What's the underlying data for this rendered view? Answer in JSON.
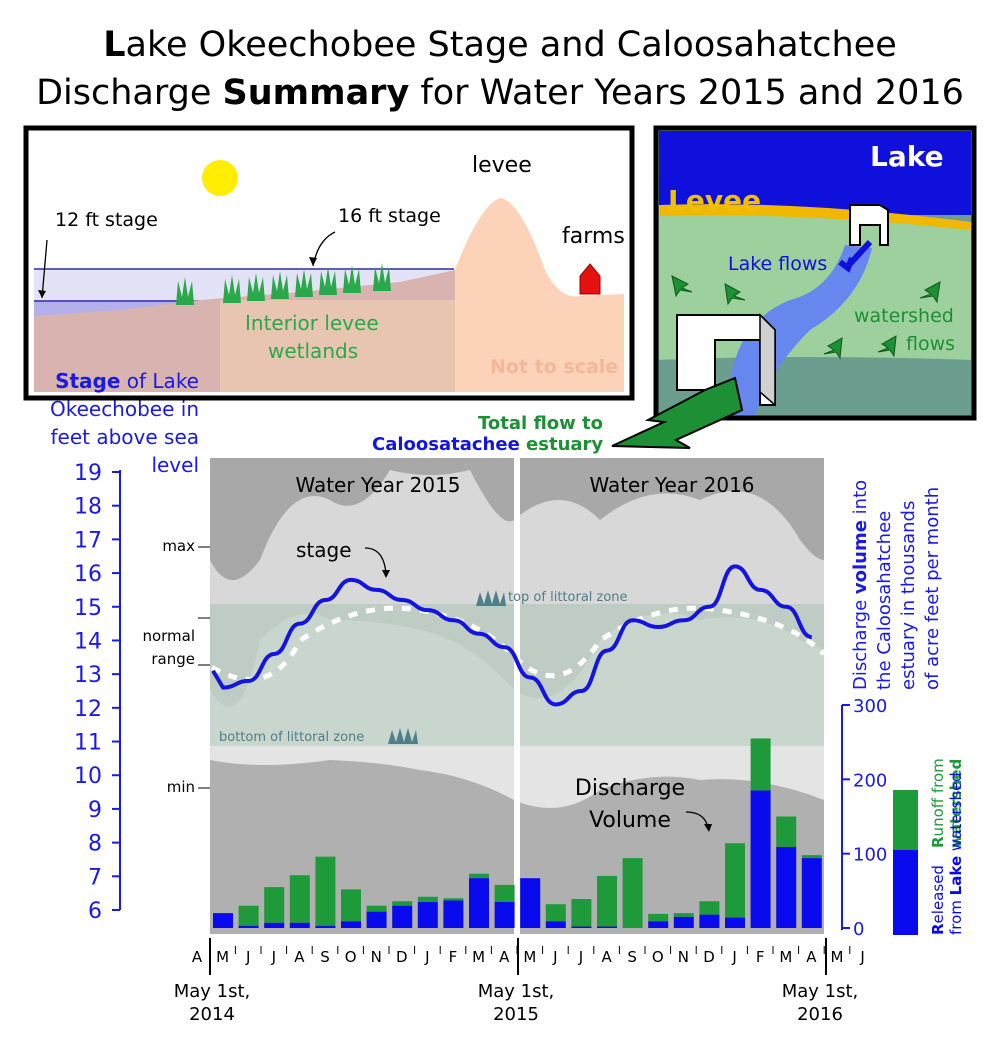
{
  "title": {
    "line1_lead": "L",
    "line1_rest": "ake Okeechobee Stage and Caloosahatchee",
    "line2_pre": "Discharge ",
    "line2_bold": "Summary",
    "line2_post": " for Water Years 2015 and 2016"
  },
  "cross_section": {
    "label_12ft": "12 ft stage",
    "label_16ft": "16 ft stage",
    "label_levee": "levee",
    "label_farms": "farms",
    "label_wetlands_1": "Interior levee",
    "label_wetlands_2": "wetlands",
    "label_not_to_scale": "Not to scale"
  },
  "map_inset": {
    "label_lake": "Lake",
    "label_levee": "Levee",
    "label_lake_flows": "Lake flows",
    "label_watershed_1": "watershed",
    "label_watershed_2": "flows",
    "total_flow_1": "Total flow to",
    "total_flow_2a": "Caloosatachee",
    "total_flow_2b": " estuary"
  },
  "left_axis": {
    "title_bold": "Stage",
    "title_rest": " of Lake",
    "title_2": "Okeechobee in",
    "title_3": "feet above sea",
    "title_4": "level",
    "ticks": [
      "19",
      "18",
      "17",
      "16",
      "15",
      "14",
      "13",
      "12",
      "11",
      "10",
      "9",
      "8",
      "7",
      "6"
    ],
    "ref_max": "max",
    "ref_normal_1": "normal",
    "ref_normal_2": "range",
    "ref_min": "min"
  },
  "right_axis": {
    "title_pre": "Discharge ",
    "title_bold": "volume",
    "title_post": " into",
    "title_2": "the Caloosahatchee",
    "title_3": "estuary in thousands",
    "title_4": "of acre feet per month",
    "ticks": [
      "300",
      "200",
      "100",
      "0"
    ]
  },
  "annotations": {
    "wy2015": "Water Year 2015",
    "wy2016": "Water Year 2016",
    "stage": "stage",
    "top_littoral": "top of littoral zone",
    "bottom_littoral": "bottom of littoral zone",
    "discharge_1": "Discharge",
    "discharge_2": "Volume"
  },
  "legend": {
    "runoff_bold": "R",
    "runoff_rest": "unoff from",
    "runoff_lake_pre": "",
    "runoff_bold2": "watershed",
    "released_bold": "R",
    "released_rest": "eleased",
    "released_2_pre": "from ",
    "released_2_bold": "Lake",
    "released_2_post": " watershed"
  },
  "x_axis": {
    "months": [
      "A",
      "M",
      "J",
      "J",
      "A",
      "S",
      "O",
      "N",
      "D",
      "J",
      "F",
      "M",
      "A",
      "M",
      "J",
      "J",
      "A",
      "S",
      "O",
      "N",
      "D",
      "J",
      "F",
      "M",
      "A",
      "M",
      "J"
    ],
    "date_labels": [
      {
        "l1": "May 1st,",
        "l2": "2014"
      },
      {
        "l1": "May 1st,",
        "l2": "2015"
      },
      {
        "l1": "May 1st,",
        "l2": "2016"
      }
    ]
  },
  "colors": {
    "stage_line": "#1414e0",
    "lake_release": "#0a0aee",
    "watershed_runoff": "#1e9a3a",
    "axis_blue": "#1a1ae6",
    "dark_green": "#1a8a30"
  },
  "chart_data": {
    "type": "bar",
    "series_description": "stage line (ft) and stacked monthly discharge (thousand acre-ft)",
    "months": [
      "M",
      "J",
      "J",
      "A",
      "S",
      "O",
      "N",
      "D",
      "J",
      "F",
      "M",
      "A",
      "M",
      "J",
      "J",
      "A",
      "S",
      "O",
      "N",
      "D",
      "J",
      "F",
      "M",
      "A"
    ],
    "stage_ylim": [
      6,
      19
    ],
    "discharge_ylim": [
      0,
      300
    ],
    "stage": [
      12.6,
      12.8,
      13.6,
      14.5,
      15.2,
      15.8,
      15.5,
      15.2,
      14.9,
      14.6,
      14.2,
      13.8,
      12.9,
      12.1,
      12.5,
      13.7,
      14.6,
      14.4,
      14.6,
      15.0,
      16.2,
      15.5,
      15.0,
      14.1
    ],
    "series": [
      {
        "name": "Released from Lake watershed",
        "values": [
          20,
          3,
          7,
          7,
          3,
          9,
          22,
          30,
          35,
          37,
          67,
          35,
          67,
          9,
          2,
          2,
          0,
          9,
          15,
          18,
          14,
          185,
          109,
          94
        ]
      },
      {
        "name": "Runoff from watershed",
        "values": [
          0,
          27,
          48,
          64,
          93,
          43,
          8,
          6,
          7,
          3,
          6,
          23,
          0,
          23,
          37,
          68,
          94,
          10,
          5,
          18,
          100,
          70,
          41,
          4
        ]
      }
    ],
    "reference_levels": {
      "max": 17.1,
      "top_littoral": 15.1,
      "bottom_littoral": 10.9,
      "min": 9.6
    }
  }
}
